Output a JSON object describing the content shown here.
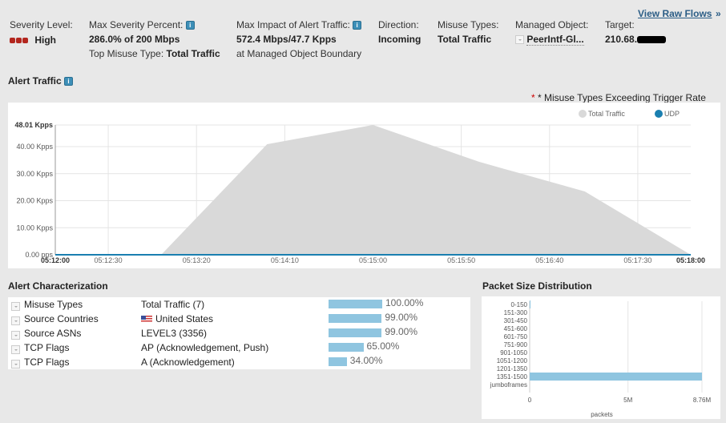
{
  "header": {
    "severity_label": "Severity Level:",
    "severity_value": "High",
    "max_sev_label": "Max Severity Percent:",
    "max_sev_value": "286.0% of 200 Mbps",
    "top_misuse_label": "Top Misuse Type:",
    "top_misuse_value": "Total Traffic",
    "max_impact_label": "Max Impact of Alert Traffic:",
    "max_impact_value": "572.4 Mbps/47.7 Kpps",
    "max_impact_sub": "at Managed Object Boundary",
    "direction_label": "Direction:",
    "direction_value": "Incoming",
    "misuse_label": "Misuse Types:",
    "misuse_value": "Total Traffic",
    "mo_label": "Managed Object:",
    "mo_value": "PeerIntf-Gl...",
    "target_label": "Target:",
    "target_value": "210.68.",
    "view_raw": "View Raw Flows",
    "view_raw_arrow": "»"
  },
  "alert_traffic": {
    "title": "Alert Traffic",
    "note": "* Misuse Types Exceeding Trigger Rate"
  },
  "chart_data": [
    {
      "type": "area",
      "title": "Alert Traffic",
      "x": [
        "05:12:00",
        "05:13:00",
        "05:14:00",
        "05:15:00",
        "05:16:00",
        "05:17:00",
        "05:18:00"
      ],
      "xsec": [
        0,
        60,
        120,
        180,
        240,
        300,
        360
      ],
      "series": [
        {
          "name": "Total Traffic",
          "color": "#d9d9d9",
          "values": [
            0,
            0,
            40.9,
            48.01,
            34.4,
            23.4,
            0
          ]
        },
        {
          "name": "UDP",
          "color": "#1a7fb0",
          "values": [
            0,
            0,
            0,
            0,
            0,
            0,
            0
          ]
        }
      ],
      "y_ticks": [
        "0.00 pps",
        "10.00 Kpps",
        "20.00 Kpps",
        "30.00 Kpps",
        "40.00 Kpps",
        "48.01 Kpps"
      ],
      "y_tick_values": [
        0,
        10,
        20,
        30,
        40,
        48.01
      ],
      "x_ticks": [
        "05:12:00",
        "05:12:30",
        "05:13:20",
        "05:14:10",
        "05:15:00",
        "05:15:50",
        "05:16:40",
        "05:17:30",
        "05:18:00"
      ],
      "x_tick_sec": [
        0,
        30,
        80,
        130,
        180,
        230,
        280,
        330,
        360
      ],
      "ylim": [
        0,
        48.01
      ],
      "unit": "Kpps",
      "legend": "top-right"
    },
    {
      "type": "bar",
      "title": "Packet Size Distribution",
      "orientation": "horizontal",
      "categories": [
        "0-150",
        "151-300",
        "301-450",
        "451-600",
        "601-750",
        "751-900",
        "901-1050",
        "1051-1200",
        "1201-1350",
        "1351-1500",
        "jumboframes"
      ],
      "values": [
        0.02,
        0,
        0,
        0,
        0,
        0,
        0,
        0,
        0,
        8.76,
        0
      ],
      "unit": "M packets",
      "xlabel": "packets",
      "x_ticks": [
        "0",
        "5M",
        "8.76M"
      ],
      "x_tick_values": [
        0,
        5,
        8.76
      ],
      "xlim": [
        0,
        8.76
      ]
    }
  ],
  "characterization": {
    "title": "Alert Characterization",
    "rows": [
      {
        "type": "Misuse Types",
        "value": "Total Traffic (7)",
        "pct": "100.00%",
        "frac": 1.0
      },
      {
        "type": "Source Countries",
        "value": "United States",
        "pct": "99.00%",
        "frac": 0.99,
        "flag": true
      },
      {
        "type": "Source ASNs",
        "value": "LEVEL3 (3356)",
        "pct": "99.00%",
        "frac": 0.99
      },
      {
        "type": "TCP Flags",
        "value": "AP (Acknowledgement, Push)",
        "pct": "65.00%",
        "frac": 0.65
      },
      {
        "type": "TCP Flags",
        "value": "A (Acknowledgement)",
        "pct": "34.00%",
        "frac": 0.34
      }
    ]
  },
  "packet_size": {
    "title": "Packet Size Distribution"
  }
}
